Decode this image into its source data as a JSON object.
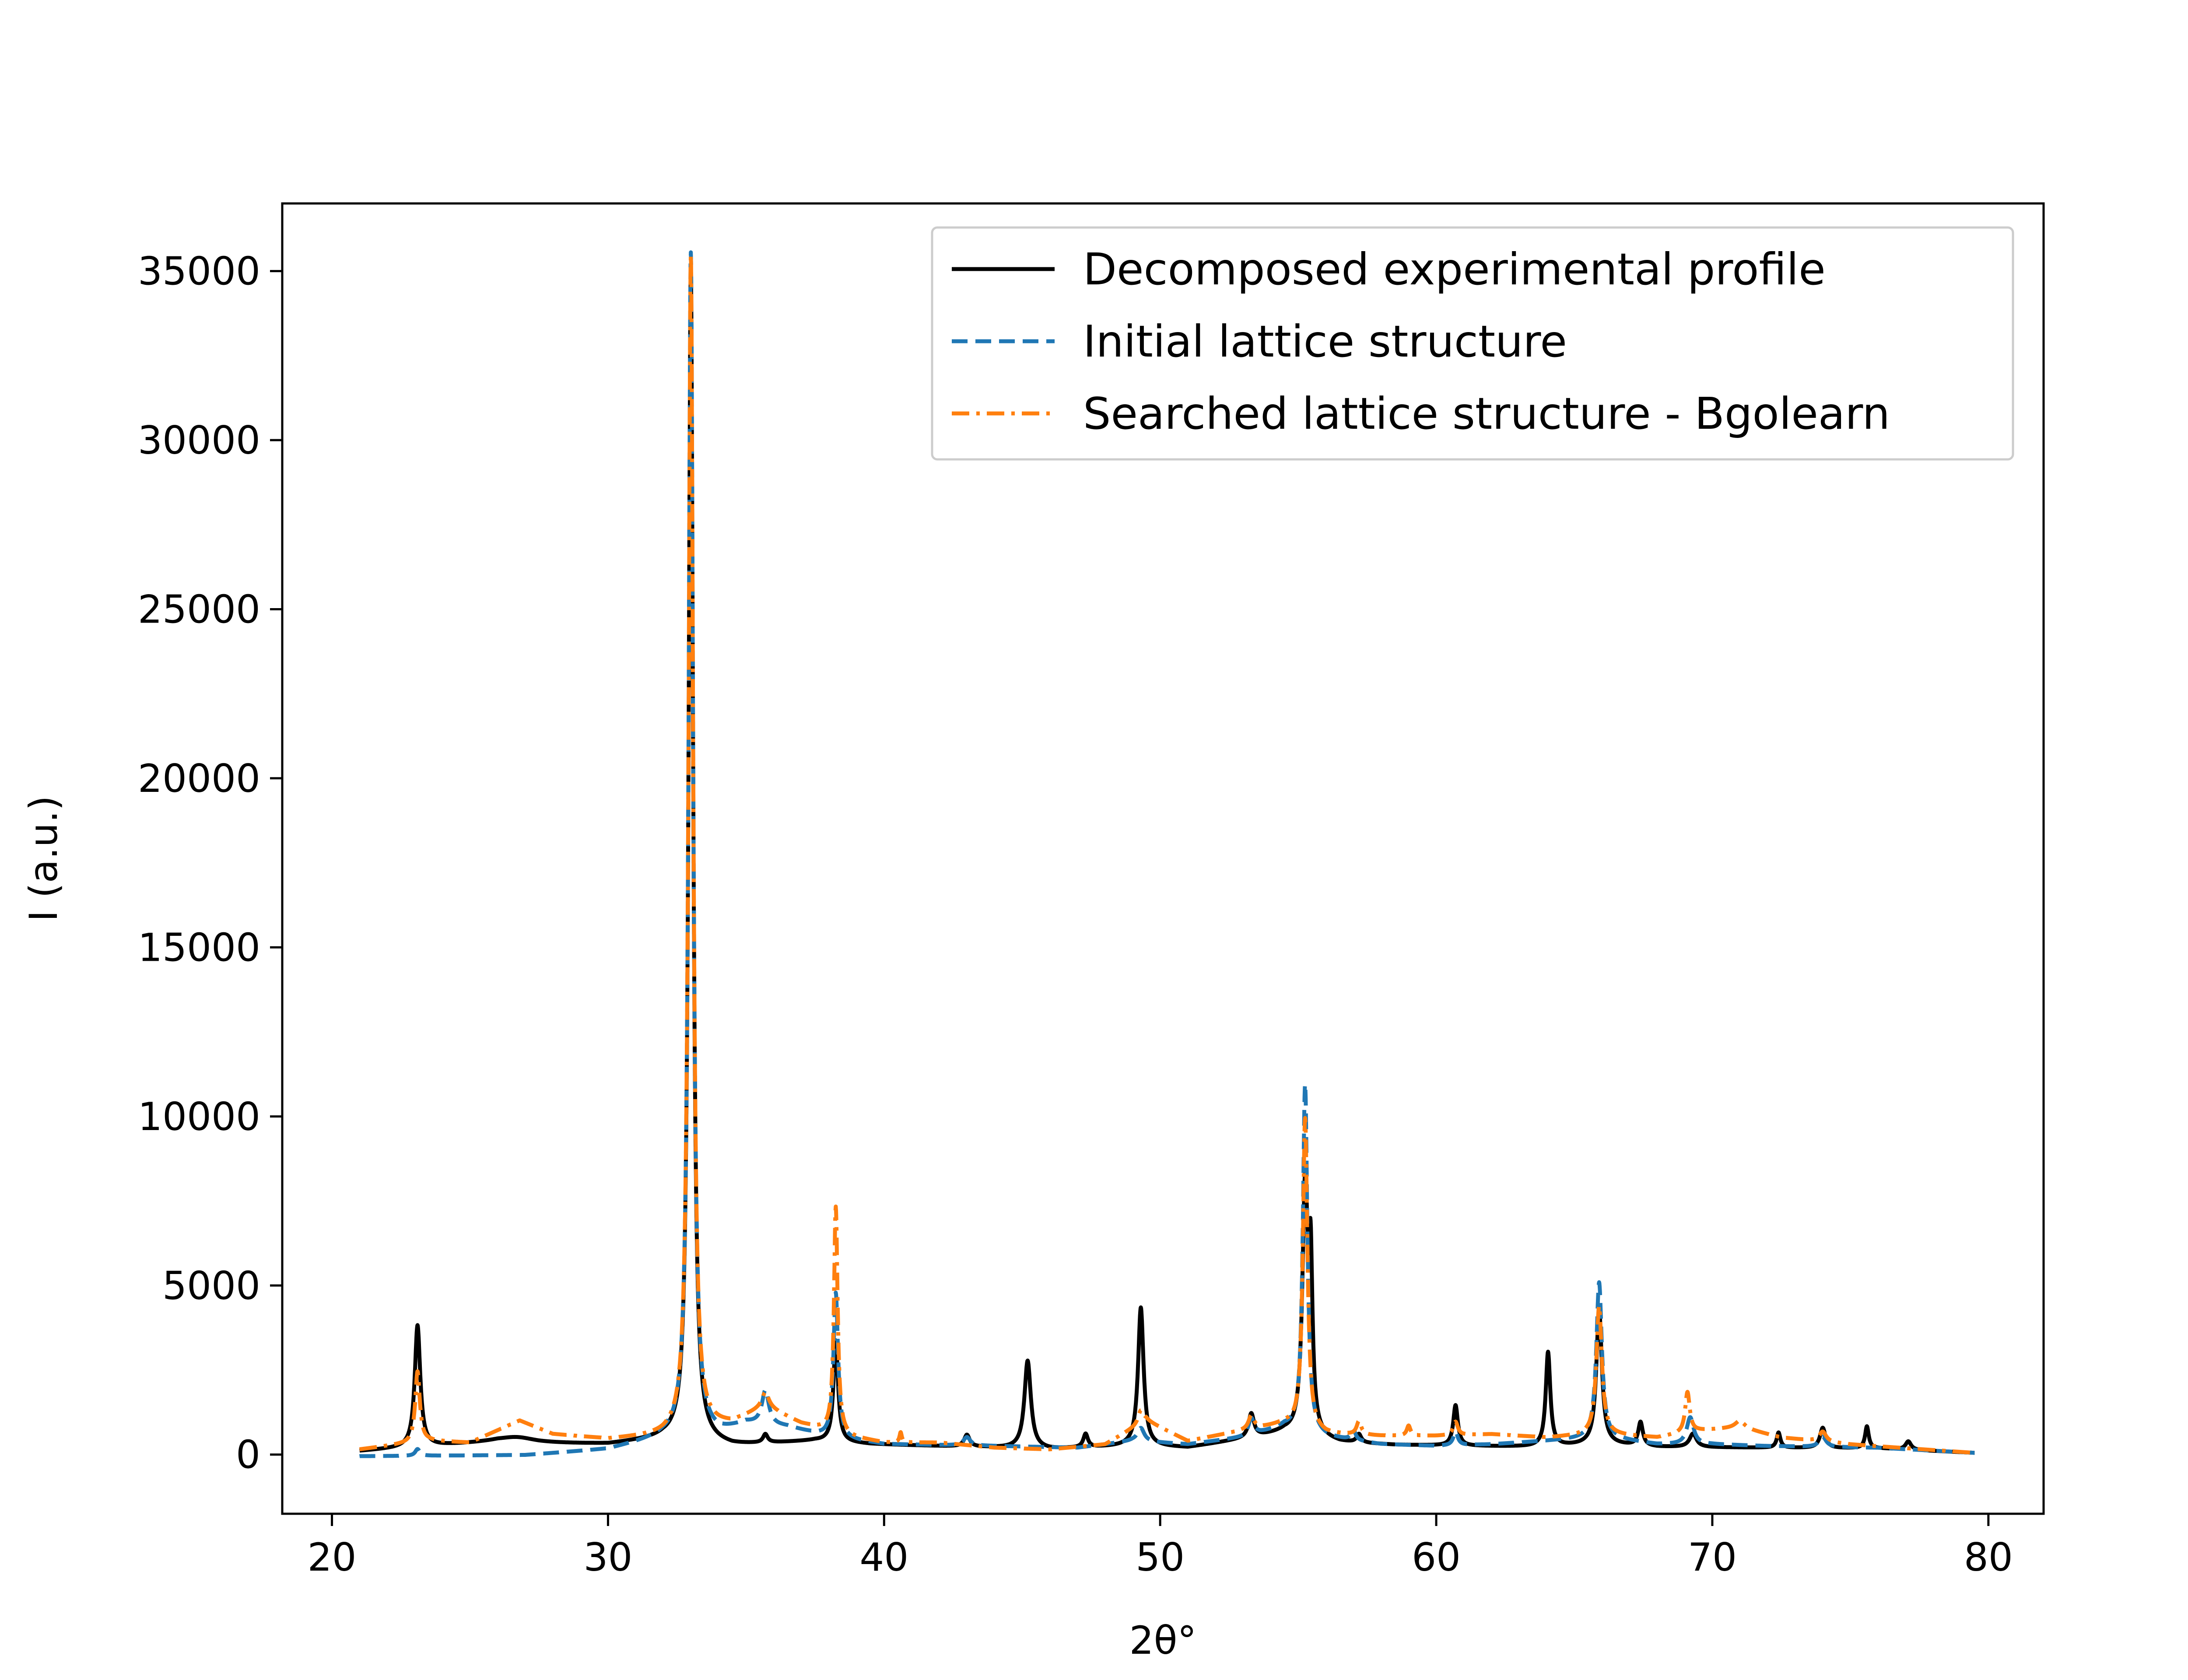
{
  "chart_data": {
    "type": "line",
    "title": "",
    "xlabel": "2θ°",
    "ylabel": "I (a.u.)",
    "xlim": [
      18.2,
      82.0
    ],
    "ylim": [
      -1750,
      37000
    ],
    "x_ticks": [
      "20",
      "30",
      "40",
      "50",
      "60",
      "70",
      "80"
    ],
    "y_ticks": [
      "0",
      "5000",
      "10000",
      "15000",
      "20000",
      "25000",
      "30000",
      "35000"
    ],
    "legend_position": "top-right",
    "x_start": 21.0,
    "x_end": 79.5,
    "series": [
      {
        "name": "Decomposed experimental profile",
        "color": "#000000",
        "dash": "solid",
        "baseline": [
          [
            21,
            100
          ],
          [
            26,
            380
          ],
          [
            27.5,
            330
          ],
          [
            30,
            300
          ],
          [
            32,
            450
          ],
          [
            34.5,
            250
          ],
          [
            37.5,
            400
          ],
          [
            39.5,
            300
          ],
          [
            44,
            200
          ],
          [
            46,
            150
          ],
          [
            49,
            250
          ],
          [
            51,
            200
          ],
          [
            53,
            450
          ],
          [
            54.5,
            650
          ],
          [
            56.5,
            350
          ],
          [
            58.5,
            280
          ],
          [
            61,
            250
          ],
          [
            64,
            220
          ],
          [
            66,
            300
          ],
          [
            68,
            220
          ],
          [
            72,
            200
          ],
          [
            76,
            180
          ],
          [
            79.5,
            50
          ]
        ],
        "peaks": [
          [
            23.1,
            3600,
            0.12
          ],
          [
            26.7,
            150,
            0.8
          ],
          [
            33.0,
            34500,
            0.1
          ],
          [
            35.7,
            250,
            0.1
          ],
          [
            38.25,
            3000,
            0.1
          ],
          [
            43.0,
            350,
            0.12
          ],
          [
            45.2,
            2600,
            0.14
          ],
          [
            47.3,
            400,
            0.1
          ],
          [
            49.3,
            4100,
            0.12
          ],
          [
            53.3,
            700,
            0.12
          ],
          [
            55.25,
            7200,
            0.12
          ],
          [
            55.45,
            4500,
            0.08
          ],
          [
            57.2,
            250,
            0.1
          ],
          [
            60.7,
            1200,
            0.1
          ],
          [
            64.05,
            2800,
            0.1
          ],
          [
            65.9,
            4000,
            0.12
          ],
          [
            67.4,
            700,
            0.1
          ],
          [
            69.3,
            400,
            0.15
          ],
          [
            72.4,
            450,
            0.08
          ],
          [
            74.0,
            600,
            0.12
          ],
          [
            75.6,
            650,
            0.08
          ],
          [
            77.1,
            250,
            0.12
          ]
        ]
      },
      {
        "name": "Initial lattice structure",
        "color": "#1f77b4",
        "dash": "dashed",
        "baseline": [
          [
            21,
            -50
          ],
          [
            27,
            -20
          ],
          [
            30,
            150
          ],
          [
            32,
            500
          ],
          [
            34,
            600
          ],
          [
            35,
            900
          ],
          [
            36.5,
            800
          ],
          [
            38,
            500
          ],
          [
            40,
            300
          ],
          [
            44,
            250
          ],
          [
            47,
            200
          ],
          [
            49,
            400
          ],
          [
            51,
            300
          ],
          [
            53,
            500
          ],
          [
            54.5,
            800
          ],
          [
            56,
            500
          ],
          [
            58,
            300
          ],
          [
            60,
            250
          ],
          [
            62,
            300
          ],
          [
            64,
            400
          ],
          [
            66,
            500
          ],
          [
            68,
            300
          ],
          [
            70,
            300
          ],
          [
            72,
            250
          ],
          [
            76,
            200
          ],
          [
            79.5,
            50
          ]
        ],
        "peaks": [
          [
            23.1,
            200,
            0.1
          ],
          [
            33.0,
            35000,
            0.1
          ],
          [
            35.7,
            1000,
            0.15
          ],
          [
            38.25,
            4300,
            0.1
          ],
          [
            43.0,
            250,
            0.15
          ],
          [
            49.3,
            400,
            0.15
          ],
          [
            53.3,
            500,
            0.12
          ],
          [
            55.25,
            10300,
            0.1
          ],
          [
            57.0,
            300,
            0.1
          ],
          [
            60.7,
            400,
            0.1
          ],
          [
            65.9,
            4600,
            0.12
          ],
          [
            69.2,
            800,
            0.15
          ],
          [
            74.0,
            300,
            0.15
          ]
        ]
      },
      {
        "name": "Searched lattice structure - Bgolearn",
        "color": "#ff7f0e",
        "dash": "dashdot",
        "baseline": [
          [
            21,
            150
          ],
          [
            23.5,
            400
          ],
          [
            25,
            350
          ],
          [
            26.8,
            1000
          ],
          [
            28,
            600
          ],
          [
            30,
            450
          ],
          [
            32,
            550
          ],
          [
            34.5,
            900
          ],
          [
            35.7,
            1400
          ],
          [
            37,
            900
          ],
          [
            38.8,
            500
          ],
          [
            40,
            350
          ],
          [
            42,
            350
          ],
          [
            44,
            200
          ],
          [
            46,
            150
          ],
          [
            48,
            300
          ],
          [
            49.5,
            1000
          ],
          [
            51,
            400
          ],
          [
            53,
            700
          ],
          [
            54.5,
            900
          ],
          [
            56,
            600
          ],
          [
            58,
            550
          ],
          [
            60,
            550
          ],
          [
            62,
            600
          ],
          [
            64,
            500
          ],
          [
            66,
            600
          ],
          [
            68,
            500
          ],
          [
            69.5,
            700
          ],
          [
            71,
            800
          ],
          [
            72.5,
            500
          ],
          [
            75,
            300
          ],
          [
            79.5,
            50
          ]
        ],
        "peaks": [
          [
            23.1,
            2100,
            0.1
          ],
          [
            33.0,
            34800,
            0.1
          ],
          [
            35.7,
            400,
            0.15
          ],
          [
            38.25,
            6700,
            0.08
          ],
          [
            40.6,
            300,
            0.05
          ],
          [
            49.3,
            400,
            0.12
          ],
          [
            53.3,
            400,
            0.12
          ],
          [
            55.25,
            9200,
            0.1
          ],
          [
            57.2,
            400,
            0.1
          ],
          [
            59.0,
            300,
            0.08
          ],
          [
            60.7,
            400,
            0.1
          ],
          [
            65.9,
            3800,
            0.12
          ],
          [
            69.1,
            1200,
            0.1
          ],
          [
            71.0,
            200,
            0.2
          ],
          [
            74.0,
            300,
            0.15
          ]
        ]
      }
    ]
  }
}
